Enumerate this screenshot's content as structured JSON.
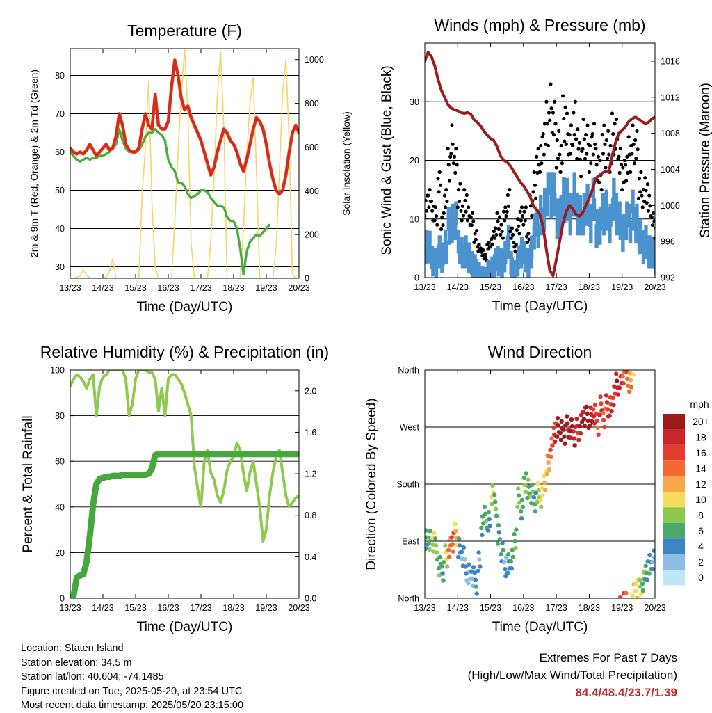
{
  "x_ticks": [
    "13/23",
    "14/23",
    "15/23",
    "16/23",
    "17/23",
    "18/23",
    "19/23",
    "20/23"
  ],
  "colors": {
    "temp": "#d42a25",
    "temp_orange": "#f08a30",
    "dewpoint": "#4aae3f",
    "solar": "#f7d565",
    "gust": "#000000",
    "wind": "#4b93cf",
    "pressure": "#9b1c1f",
    "rh": "#8fc94f",
    "precip": "#46a83c",
    "extremes": "#c0282d"
  },
  "chart_data": [
    {
      "id": "temperature",
      "type": "line",
      "title": "Temperature (F)",
      "xlabel": "Time (Day/UTC)",
      "ylabel": "2m & 9m T (Red, Orange) & 2m Td (Green)",
      "y2label": "Solar Insolation (Yellow)",
      "ylim": [
        27,
        87
      ],
      "y2lim": [
        0,
        1050
      ],
      "yticks": [
        30,
        40,
        50,
        60,
        70,
        80
      ],
      "y2ticks": [
        0,
        200,
        400,
        600,
        800,
        1000
      ],
      "x": [
        0,
        0.1,
        0.2,
        0.3,
        0.4,
        0.5,
        0.6,
        0.7,
        0.8,
        0.9,
        1,
        1.1,
        1.2,
        1.3,
        1.4,
        1.5,
        1.6,
        1.7,
        1.8,
        1.9,
        2,
        2.1,
        2.2,
        2.3,
        2.4,
        2.5,
        2.6,
        2.7,
        2.8,
        2.9,
        3,
        3.1,
        3.2,
        3.3,
        3.4,
        3.5,
        3.6,
        3.7,
        3.8,
        3.9,
        4,
        4.1,
        4.2,
        4.3,
        4.4,
        4.5,
        4.6,
        4.7,
        4.8,
        4.9,
        5,
        5.1,
        5.2,
        5.3,
        5.4,
        5.5,
        5.6,
        5.7,
        5.8,
        5.9,
        6,
        6.1,
        6.2,
        6.3,
        6.4,
        6.5,
        6.6,
        6.7,
        6.8,
        6.9,
        7
      ],
      "series": [
        {
          "name": "2m T",
          "values": [
            61,
            60,
            59.5,
            60,
            59.5,
            60.5,
            62,
            60.5,
            59,
            60,
            61,
            62,
            60.5,
            61,
            64,
            70,
            67,
            62,
            60.5,
            60,
            60,
            61,
            66,
            70,
            67,
            66,
            75,
            67,
            66,
            66,
            68,
            77,
            84,
            80,
            74,
            71,
            72,
            69,
            67,
            65,
            63,
            60,
            57,
            54,
            56,
            60,
            63,
            66,
            65,
            63,
            62,
            60,
            57,
            55,
            58,
            62,
            66,
            69,
            68,
            66,
            62,
            57,
            53,
            50,
            49,
            50,
            54,
            60,
            65,
            67,
            65
          ]
        },
        {
          "name": "2m Td",
          "values": [
            60,
            59,
            58,
            57.5,
            58,
            58.5,
            58,
            58.5,
            58.5,
            59,
            59,
            59.5,
            60,
            61,
            62,
            66,
            63,
            61,
            60,
            60,
            60,
            60.5,
            62,
            64,
            65,
            65,
            66,
            65,
            64.5,
            63,
            58,
            56,
            55,
            52,
            52,
            51,
            49,
            48,
            48.5,
            49,
            50,
            50,
            49.5,
            48,
            47,
            46,
            46,
            45.5,
            43,
            42,
            42,
            40,
            35,
            28,
            34,
            36.5,
            37.5,
            38.5,
            38,
            39,
            40,
            41,
            null,
            null,
            null,
            null,
            null,
            null,
            null,
            null,
            null
          ]
        },
        {
          "name": "Solar",
          "axis": "y2",
          "values": [
            0,
            0,
            5,
            10,
            40,
            15,
            0,
            0,
            0,
            0,
            0,
            5,
            30,
            90,
            0,
            0,
            0,
            0,
            0,
            0,
            0,
            0,
            380,
            600,
            900,
            350,
            50,
            0,
            0,
            0,
            0,
            0,
            260,
            580,
            840,
            1050,
            750,
            160,
            0,
            0,
            0,
            0,
            0,
            170,
            460,
            830,
            1040,
            690,
            0,
            0,
            0,
            0,
            0,
            220,
            560,
            800,
            920,
            490,
            0,
            0,
            0,
            0,
            0,
            140,
            480,
            850,
            1000,
            620,
            20,
            0,
            0
          ]
        }
      ]
    },
    {
      "id": "winds",
      "type": "line",
      "title": "Winds (mph) & Pressure (mb)",
      "xlabel": "Time (Day/UTC)",
      "ylabel": "Sonic Wind & Gust (Blue, Black)",
      "y2label": "Station Pressure (Maroon)",
      "ylim": [
        0,
        40
      ],
      "y2lim": [
        992,
        1018
      ],
      "yticks": [
        0,
        10,
        20,
        30
      ],
      "y2ticks": [
        992,
        996,
        1000,
        1004,
        1008,
        1012,
        1016
      ],
      "x": [
        0,
        0.1,
        0.2,
        0.3,
        0.4,
        0.5,
        0.6,
        0.7,
        0.8,
        0.9,
        1,
        1.1,
        1.2,
        1.3,
        1.4,
        1.5,
        1.6,
        1.7,
        1.8,
        1.9,
        2,
        2.1,
        2.2,
        2.3,
        2.4,
        2.5,
        2.6,
        2.7,
        2.8,
        2.9,
        3,
        3.1,
        3.2,
        3.3,
        3.4,
        3.5,
        3.6,
        3.7,
        3.8,
        3.9,
        4,
        4.1,
        4.2,
        4.3,
        4.4,
        4.5,
        4.6,
        4.7,
        4.8,
        4.9,
        5,
        5.1,
        5.2,
        5.3,
        5.4,
        5.5,
        5.6,
        5.7,
        5.8,
        5.9,
        6,
        6.1,
        6.2,
        6.3,
        6.4,
        6.5,
        6.6,
        6.7,
        6.8,
        6.9,
        7
      ],
      "series": [
        {
          "name": "Gust",
          "values": [
            14,
            16,
            13,
            12,
            18,
            11,
            16,
            22,
            26,
            22,
            16,
            13,
            15,
            12,
            11,
            8,
            6,
            5,
            4,
            6,
            7,
            9,
            11,
            9,
            12,
            15,
            9,
            6,
            10,
            12,
            12,
            8,
            14,
            18,
            22,
            24,
            28,
            30,
            33,
            30,
            25,
            24,
            31,
            28,
            26,
            30,
            27,
            23,
            27,
            26,
            24,
            28,
            22,
            20,
            26,
            25,
            24,
            28,
            27,
            22,
            20,
            22,
            24,
            26,
            25,
            18,
            16,
            17,
            14,
            11,
            9
          ]
        },
        {
          "name": "Wind",
          "values": [
            9,
            8,
            6,
            5,
            8,
            6,
            9,
            12,
            14,
            13,
            9,
            7,
            8,
            6,
            5,
            4,
            3,
            2,
            2,
            3,
            4,
            5,
            6,
            5,
            7,
            9,
            5,
            3,
            6,
            7,
            7,
            5,
            8,
            11,
            13,
            14,
            17,
            18,
            20,
            18,
            15,
            14,
            19,
            17,
            16,
            18,
            16,
            14,
            16,
            16,
            14,
            17,
            13,
            12,
            16,
            15,
            14,
            17,
            16,
            13,
            12,
            13,
            14,
            15,
            14,
            10,
            9,
            9,
            8,
            7,
            5
          ]
        },
        {
          "name": "Pressure",
          "axis": "y2",
          "values": [
            1016,
            1017,
            1016.5,
            1015.5,
            1014,
            1012.8,
            1012,
            1011.2,
            1010.8,
            1010.6,
            1010.5,
            1010.3,
            1010.2,
            1010.3,
            1010.1,
            1009.5,
            1009.2,
            1008.8,
            1008.2,
            1007.8,
            1007.4,
            1007.2,
            1006.5,
            1005.5,
            1005,
            1004.8,
            1004.4,
            1003.8,
            1003.2,
            1002.6,
            1002.2,
            1001.6,
            1001,
            1000,
            999.5,
            999,
            997.6,
            995,
            992.8,
            992.2,
            994,
            996,
            998,
            999.3,
            1000,
            999.6,
            999,
            998.8,
            999.2,
            1000,
            1000.8,
            1001.8,
            1003,
            1003.3,
            1003.6,
            1003.8,
            1003.8,
            1005.5,
            1007,
            1008,
            1008.3,
            1008.7,
            1009.3,
            1009.6,
            1009.8,
            1009.6,
            1009.3,
            1009.1,
            1009.2,
            1009.6,
            1009.8
          ]
        }
      ]
    },
    {
      "id": "humidity",
      "type": "line",
      "title": "Relative Humidity (%) & Precipitation (in)",
      "xlabel": "Time (Day/UTC)",
      "ylabel": "Percent & Total Rainfall",
      "ylim": [
        0,
        100
      ],
      "y2lim": [
        0,
        2.2
      ],
      "yticks": [
        0,
        20,
        40,
        60,
        80,
        100
      ],
      "y2ticks": [
        0.0,
        0.4,
        0.8,
        1.2,
        1.6,
        2.0
      ],
      "x": [
        0,
        0.1,
        0.2,
        0.3,
        0.4,
        0.5,
        0.6,
        0.7,
        0.8,
        0.9,
        1,
        1.1,
        1.2,
        1.3,
        1.4,
        1.5,
        1.6,
        1.7,
        1.8,
        1.9,
        2,
        2.1,
        2.2,
        2.3,
        2.4,
        2.5,
        2.6,
        2.7,
        2.8,
        2.9,
        3,
        3.1,
        3.2,
        3.3,
        3.4,
        3.5,
        3.6,
        3.7,
        3.8,
        3.9,
        4,
        4.1,
        4.2,
        4.3,
        4.4,
        4.5,
        4.6,
        4.7,
        4.8,
        4.9,
        5,
        5.1,
        5.2,
        5.3,
        5.4,
        5.5,
        5.6,
        5.7,
        5.8,
        5.9,
        6,
        6.1,
        6.2,
        6.3,
        6.4,
        6.5,
        6.6,
        6.7,
        6.8,
        6.9,
        7
      ],
      "series": [
        {
          "name": "RH",
          "values": [
            93,
            96,
            98,
            97,
            95,
            92,
            96,
            98,
            80,
            93,
            97,
            98,
            100,
            100,
            100,
            100,
            100,
            96,
            80,
            85,
            96,
            100,
            100,
            100,
            99,
            99,
            96,
            82,
            92,
            80,
            96,
            98,
            98,
            96,
            94,
            90,
            85,
            80,
            58,
            48,
            40,
            60,
            65,
            55,
            52,
            45,
            42,
            47,
            56,
            60,
            62,
            68,
            65,
            55,
            47,
            55,
            60,
            50,
            40,
            25,
            30,
            45,
            55,
            62,
            65,
            55,
            45,
            40,
            42,
            44,
            45
          ]
        },
        {
          "name": "Precip",
          "axis": "y2",
          "values": [
            0,
            0.02,
            0.2,
            0.22,
            0.23,
            0.35,
            0.6,
            0.9,
            1.1,
            1.15,
            1.16,
            1.17,
            1.17,
            1.18,
            1.18,
            1.18,
            1.19,
            1.19,
            1.19,
            1.19,
            1.19,
            1.19,
            1.19,
            1.19,
            1.2,
            1.25,
            1.38,
            1.39,
            1.39,
            1.39,
            1.39,
            1.39,
            1.39,
            1.39,
            1.39,
            1.39,
            1.39,
            1.39,
            1.39,
            1.39,
            1.39,
            1.39,
            1.39,
            1.39,
            1.39,
            1.39,
            1.39,
            1.39,
            1.39,
            1.39,
            1.39,
            1.39,
            1.39,
            1.39,
            1.39,
            1.39,
            1.39,
            1.39,
            1.39,
            1.39,
            1.39,
            1.39,
            1.39,
            1.39,
            1.39,
            1.39,
            1.39,
            1.39,
            1.39,
            1.39,
            1.39
          ]
        }
      ]
    },
    {
      "id": "wind_direction",
      "type": "scatter",
      "title": "Wind Direction",
      "xlabel": "Time (Day/UTC)",
      "ylabel": "Direction (Colored By Speed)",
      "yticks": [
        "North",
        "East",
        "South",
        "West",
        "North"
      ],
      "ylim": [
        0,
        360
      ],
      "legend": {
        "title": "mph",
        "labels": [
          "20+",
          "18",
          "16",
          "14",
          "12",
          "10",
          "8",
          "6",
          "4",
          "2",
          "0"
        ],
        "colors": [
          "#9c1b1d",
          "#c9262b",
          "#e23d2d",
          "#f26a32",
          "#f9a74b",
          "#f6dd5a",
          "#8cc94f",
          "#4aa86a",
          "#3e84c4",
          "#8cbde5",
          "#c3e4f6"
        ]
      },
      "x": [
        0.05,
        0.15,
        0.25,
        0.35,
        0.45,
        0.55,
        0.65,
        0.75,
        0.85,
        0.95,
        1.05,
        1.15,
        1.25,
        1.35,
        1.45,
        1.55,
        1.65,
        1.75,
        1.85,
        1.95,
        2.05,
        2.15,
        2.25,
        2.35,
        2.45,
        2.55,
        2.65,
        2.75,
        2.85,
        2.95,
        3.05,
        3.15,
        3.25,
        3.35,
        3.45,
        3.55,
        3.65,
        3.75,
        3.85,
        3.95,
        4.05,
        4.15,
        4.25,
        4.35,
        4.45,
        4.55,
        4.65,
        4.75,
        4.85,
        4.95,
        5.05,
        5.15,
        5.25,
        5.35,
        5.45,
        5.55,
        5.65,
        5.75,
        5.85,
        5.95,
        6.05,
        6.15,
        6.25,
        6.35,
        6.45,
        6.55,
        6.65,
        6.75,
        6.85,
        6.95
      ],
      "values": [
        98,
        95,
        90,
        75,
        55,
        45,
        65,
        85,
        92,
        100,
        75,
        70,
        45,
        35,
        40,
        25,
        55,
        110,
        130,
        120,
        160,
        150,
        100,
        70,
        45,
        55,
        60,
        90,
        160,
        140,
        180,
        175,
        165,
        150,
        170,
        160,
        185,
        215,
        240,
        262,
        275,
        268,
        260,
        268,
        272,
        258,
        265,
        280,
        290,
        285,
        282,
        295,
        275,
        300,
        290,
        305,
        300,
        315,
        340,
        345,
        350,
        355,
        340,
        5,
        10,
        15,
        25,
        40,
        55,
        60
      ],
      "speeds": [
        5,
        6,
        8,
        7,
        6,
        5,
        9,
        13,
        14,
        11,
        4,
        3,
        3,
        2,
        2,
        4,
        3,
        5,
        6,
        4,
        8,
        6,
        5,
        4,
        3,
        4,
        5,
        6,
        7,
        5,
        7,
        6,
        6,
        5,
        8,
        9,
        11,
        12,
        14,
        17,
        20,
        21,
        20,
        19,
        19,
        18,
        17,
        18,
        19,
        20,
        18,
        17,
        15,
        16,
        15,
        17,
        16,
        17,
        18,
        17,
        15,
        14,
        12,
        10,
        9,
        8,
        6,
        5,
        4,
        3
      ]
    }
  ],
  "info": {
    "location": "Location: Staten Island",
    "elevation": "Station elevation: 34.5 m",
    "latlon": "Station lat/lon: 40.604; -74.1485",
    "created": "Figure created on Tue, 2025-05-20, at 23:54 UTC",
    "recent": "Most recent data timestamp: 2025/05/20 23:15:00"
  },
  "extremes": {
    "title": "Extremes For Past 7 Days",
    "subtitle": "(High/Low/Max Wind/Total Precipitation)",
    "values": "84.4/48.4/23.7/1.39"
  }
}
